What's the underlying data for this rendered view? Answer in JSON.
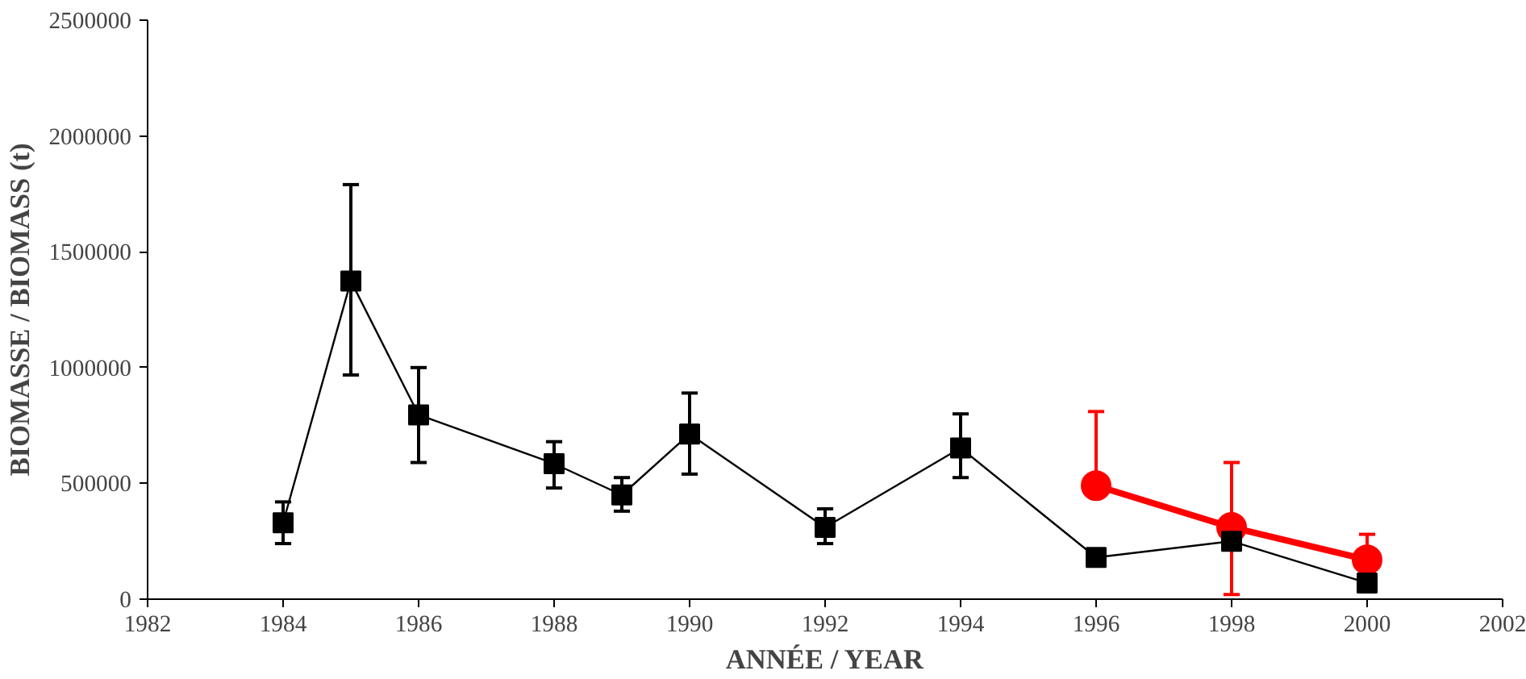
{
  "chart_data": {
    "type": "line",
    "xlabel": "ANNÉE / YEAR",
    "ylabel": "BIOMASSE / BIOMASS (t)",
    "xlim": [
      1982,
      2002
    ],
    "xticks": [
      1982,
      1984,
      1986,
      1988,
      1990,
      1992,
      1994,
      1996,
      1998,
      2000,
      2002
    ],
    "ylim": [
      0,
      2500000
    ],
    "yticks": [
      0,
      500000,
      1000000,
      1500000,
      2000000,
      2500000
    ],
    "grid": false,
    "series": [
      {
        "color": "#000000",
        "marker": "square",
        "x": [
          1984,
          1985,
          1986,
          1988,
          1989,
          1990,
          1992,
          1994,
          1996,
          1998,
          2000
        ],
        "values": [
          330000,
          1374000,
          796000,
          585000,
          450000,
          713000,
          310000,
          653000,
          180000,
          250000,
          70000
        ],
        "errors": [
          [
            240000,
            420000
          ],
          [
            968000,
            1790000
          ],
          [
            590000,
            1000000
          ],
          [
            480000,
            680000
          ],
          [
            380000,
            525000
          ],
          [
            540000,
            890000
          ],
          [
            240000,
            390000
          ],
          [
            525000,
            800000
          ],
          null,
          null,
          null
        ]
      },
      {
        "color": "#ff0000",
        "marker": "circle",
        "x": [
          1996,
          1998,
          2000
        ],
        "values": [
          490000,
          310000,
          170000
        ],
        "errors": [
          [
            490000,
            810000
          ],
          [
            20000,
            590000
          ],
          [
            170000,
            280000
          ]
        ]
      }
    ]
  }
}
